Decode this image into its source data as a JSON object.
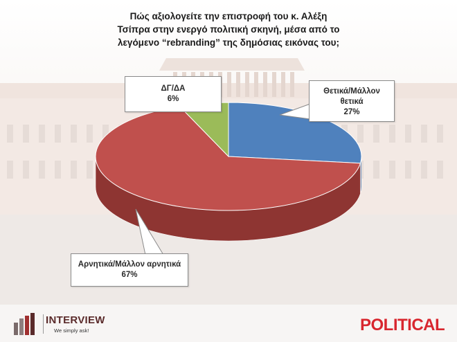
{
  "chart_data": {
    "type": "pie",
    "title_lines": [
      "Πώς αξιολογείτε την επιστροφή του κ. Αλέξη",
      "Τσίπρα στην ενεργό πολιτική σκηνή, μέσα από το",
      "λεγόμενο “rebranding” της δημόσιας εικόνας του;"
    ],
    "slices": [
      {
        "label_lines": [
          "Θετικά/Μάλλον",
          "θετικά"
        ],
        "value": 27,
        "value_label": "27%",
        "color": "#4f81bd",
        "side": "#3b6396"
      },
      {
        "label_lines": [
          "Αρνητικά/Μάλλον αρνητικά"
        ],
        "value": 67,
        "value_label": "67%",
        "color": "#c0504d",
        "side": "#8e3532"
      },
      {
        "label_lines": [
          "ΔΓ/ΔΑ"
        ],
        "value": 6,
        "value_label": "6%",
        "color": "#9bbb59",
        "side": "#6f8a3c"
      }
    ]
  },
  "logos": {
    "left_name": "INTERVIEW",
    "left_tagline": "We simply ask!",
    "right_name": "POLITICAL",
    "right_color": "#d8262e"
  }
}
